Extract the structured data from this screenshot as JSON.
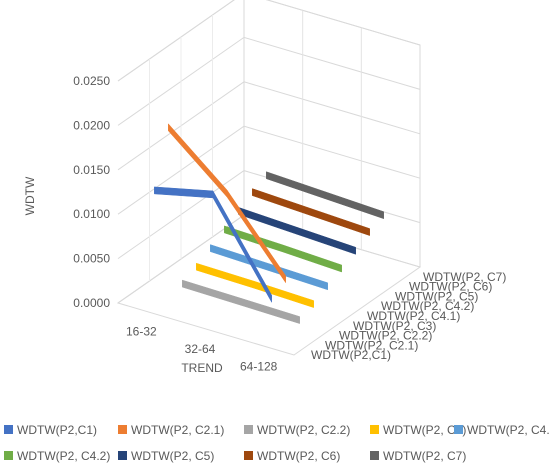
{
  "chart_data": {
    "type": "line",
    "subtype": "3d-line",
    "title": "",
    "xlabel": "TREND",
    "ylabel": "WDTW",
    "categories": [
      "16-32",
      "32-64",
      "64-128"
    ],
    "ylim": [
      0,
      0.025
    ],
    "yticks": [
      "0.0000",
      "0.0050",
      "0.0100",
      "0.0150",
      "0.0200",
      "0.0250"
    ],
    "grid": true,
    "legend_position": "bottom",
    "series": [
      {
        "name": "WDTW(P2,C1)",
        "depth_label": "WDTW(P2,C1)",
        "color": "#4472C4",
        "values": [
          0.0135,
          0.015,
          0.0052
        ]
      },
      {
        "name": "WDTW(P2, C2.1)",
        "depth_label": "WDTW(P2, C2.1)",
        "color": "#ED7D31",
        "values": [
          0.0195,
          0.014,
          0.0063
        ]
      },
      {
        "name": "WDTW(P2, C2.2)",
        "depth_label": "WDTW(P2, C2.2)",
        "color": "#A5A5A5",
        "values": [
          0.0008,
          0.0007,
          0.0006
        ]
      },
      {
        "name": "WDTW(P2, C3)",
        "depth_label": "WDTW(P2, C3)",
        "color": "#FFC000",
        "values": [
          0.0016,
          0.0015,
          0.0013
        ]
      },
      {
        "name": "WDTW(P2, C4.1)",
        "depth_label": "WDTW(P2, C4.1)",
        "color": "#5B9BD5",
        "values": [
          0.0026,
          0.0024,
          0.0022
        ]
      },
      {
        "name": "WDTW(P2, C4.2)",
        "depth_label": "WDTW(P2, C4.2)",
        "color": "#70AD47",
        "values": [
          0.0036,
          0.0034,
          0.0031
        ]
      },
      {
        "name": "WDTW(P2, C5)",
        "depth_label": "WDTW(P2, C5)",
        "color": "#264478",
        "values": [
          0.0046,
          0.0043,
          0.004
        ]
      },
      {
        "name": "WDTW(P2, C6)",
        "depth_label": "WDTW(P2, C6)",
        "color": "#9E480E",
        "values": [
          0.0056,
          0.0053,
          0.005
        ]
      },
      {
        "name": "WDTW(P2, C7)",
        "depth_label": "WDTW(P2, C7)",
        "color": "#636363",
        "values": [
          0.0064,
          0.0061,
          0.0058
        ]
      }
    ]
  }
}
